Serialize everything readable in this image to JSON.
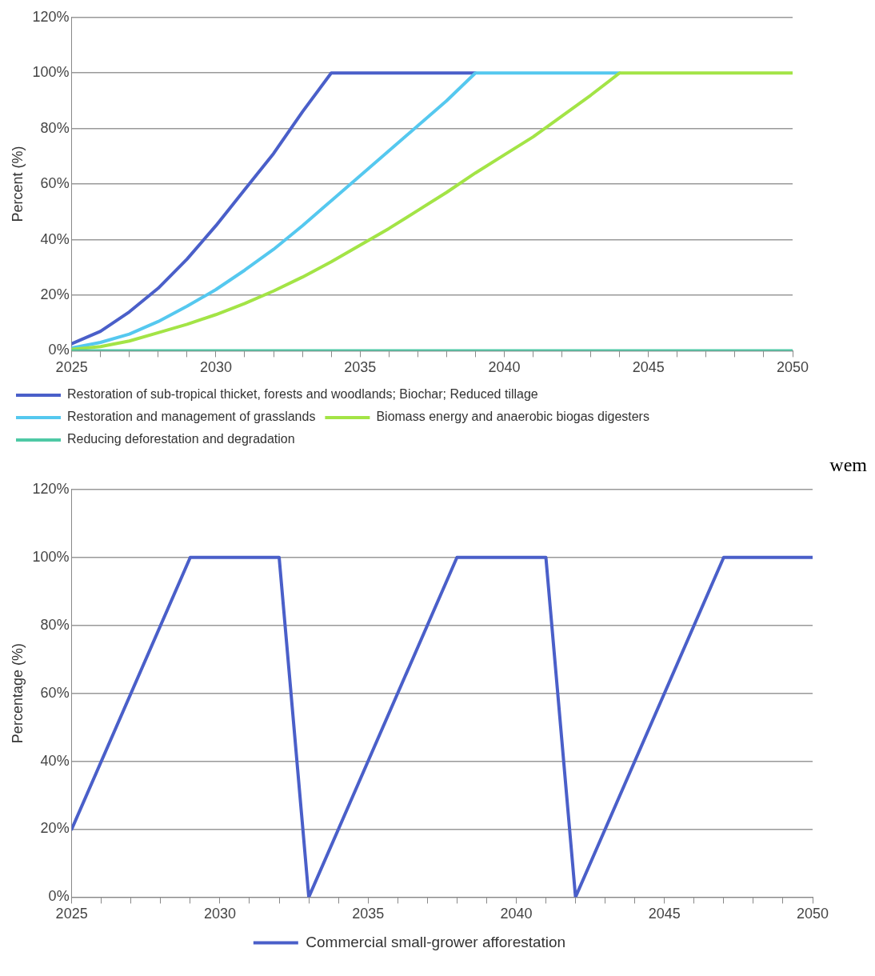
{
  "chart_data": [
    {
      "type": "line",
      "ylabel": "Percent (%)",
      "x": [
        2025,
        2026,
        2027,
        2028,
        2029,
        2030,
        2031,
        2032,
        2033,
        2034,
        2035,
        2036,
        2037,
        2038,
        2039,
        2040,
        2041,
        2042,
        2043,
        2044,
        2045,
        2046,
        2047,
        2048,
        2049,
        2050
      ],
      "series": [
        {
          "name": "Restoration of sub-tropical thicket, forests and woodlands; Biochar; Reduced tillage",
          "color": "#4a5fc9",
          "values": [
            2.5,
            7,
            14,
            22.5,
            33,
            45,
            58,
            71,
            86,
            100,
            100,
            100,
            100,
            100,
            100,
            null,
            null,
            null,
            null,
            null,
            null,
            null,
            null,
            null,
            null,
            null
          ]
        },
        {
          "name": "Restoration and management of grasslands",
          "color": "#55c8ef",
          "values": [
            1,
            3,
            6,
            10.5,
            16,
            22,
            29,
            36.5,
            45,
            54,
            63,
            72,
            81,
            90,
            100,
            100,
            100,
            100,
            100,
            100,
            null,
            null,
            null,
            null,
            null,
            null
          ]
        },
        {
          "name": "Biomass energy and anaerobic biogas digesters",
          "color": "#a3e446",
          "values": [
            0.5,
            1.5,
            3.5,
            6.5,
            9.5,
            13,
            17,
            21.5,
            26.5,
            32,
            38,
            44,
            50.5,
            57,
            64,
            70.5,
            77,
            84.5,
            92,
            100,
            100,
            100,
            100,
            100,
            100,
            100
          ]
        },
        {
          "name": "Reducing deforestation and degradation",
          "color": "#4ec9a5",
          "values": [
            0,
            0,
            0,
            0,
            0,
            0,
            0,
            0,
            0,
            0,
            0,
            0,
            0,
            0,
            0,
            0,
            0,
            0,
            0,
            0,
            0,
            0,
            0,
            0,
            0,
            0
          ]
        }
      ],
      "xlim": [
        2025,
        2050
      ],
      "xticks": [
        2025,
        {
          "value": 2026,
          "label": null
        },
        {
          "value": 2027,
          "label": null
        },
        {
          "value": 2028,
          "label": null
        },
        {
          "value": 2029,
          "label": null
        },
        2030,
        {
          "value": 2031,
          "label": null
        },
        {
          "value": 2032,
          "label": null
        },
        {
          "value": 2033,
          "label": null
        },
        {
          "value": 2034,
          "label": null
        },
        2035,
        {
          "value": 2036,
          "label": null
        },
        {
          "value": 2037,
          "label": null
        },
        {
          "value": 2038,
          "label": null
        },
        {
          "value": 2039,
          "label": null
        },
        2040,
        {
          "value": 2041,
          "label": null
        },
        {
          "value": 2042,
          "label": null
        },
        {
          "value": 2043,
          "label": null
        },
        {
          "value": 2044,
          "label": null
        },
        2045,
        {
          "value": 2046,
          "label": null
        },
        {
          "value": 2047,
          "label": null
        },
        {
          "value": 2048,
          "label": null
        },
        {
          "value": 2049,
          "label": null
        },
        2050
      ],
      "ylim": [
        0,
        120
      ],
      "yticks": [
        {
          "value": 0,
          "label": "0%"
        },
        {
          "value": 20,
          "label": "20%"
        },
        {
          "value": 40,
          "label": "40%"
        },
        {
          "value": 60,
          "label": "60%"
        },
        {
          "value": 80,
          "label": "80%"
        },
        {
          "value": 100,
          "label": "100%"
        },
        {
          "value": 120,
          "label": "120%"
        }
      ],
      "grid": "y",
      "legend": "bottom",
      "marker": "none",
      "line_style": "solid",
      "annotations": [
        "wem"
      ]
    },
    {
      "type": "line",
      "ylabel": "Percentage (%)",
      "x": [
        2025,
        2029,
        2032,
        2033,
        2038,
        2041,
        2042,
        2047,
        2050
      ],
      "series": [
        {
          "name": "Commercial small-grower afforestation",
          "color": "#4a5fc9",
          "values": [
            20,
            100,
            100,
            0,
            100,
            100,
            0,
            100,
            100
          ]
        }
      ],
      "xlim": [
        2025,
        2050
      ],
      "xticks": [
        2025,
        {
          "value": 2026,
          "label": null
        },
        {
          "value": 2027,
          "label": null
        },
        {
          "value": 2028,
          "label": null
        },
        {
          "value": 2029,
          "label": null
        },
        2030,
        {
          "value": 2031,
          "label": null
        },
        {
          "value": 2032,
          "label": null
        },
        {
          "value": 2033,
          "label": null
        },
        {
          "value": 2034,
          "label": null
        },
        2035,
        {
          "value": 2036,
          "label": null
        },
        {
          "value": 2037,
          "label": null
        },
        {
          "value": 2038,
          "label": null
        },
        {
          "value": 2039,
          "label": null
        },
        2040,
        {
          "value": 2041,
          "label": null
        },
        {
          "value": 2042,
          "label": null
        },
        {
          "value": 2043,
          "label": null
        },
        {
          "value": 2044,
          "label": null
        },
        2045,
        {
          "value": 2046,
          "label": null
        },
        {
          "value": 2047,
          "label": null
        },
        {
          "value": 2048,
          "label": null
        },
        {
          "value": 2049,
          "label": null
        },
        2050
      ],
      "ylim": [
        0,
        120
      ],
      "yticks": [
        {
          "value": 0,
          "label": "0%"
        },
        {
          "value": 20,
          "label": "20%"
        },
        {
          "value": 40,
          "label": "40%"
        },
        {
          "value": 60,
          "label": "60%"
        },
        {
          "value": 80,
          "label": "80%"
        },
        {
          "value": 100,
          "label": "100%"
        },
        {
          "value": 120,
          "label": "120%"
        }
      ],
      "grid": "y",
      "legend": "bottom",
      "marker": "none",
      "line_style": "solid"
    }
  ]
}
